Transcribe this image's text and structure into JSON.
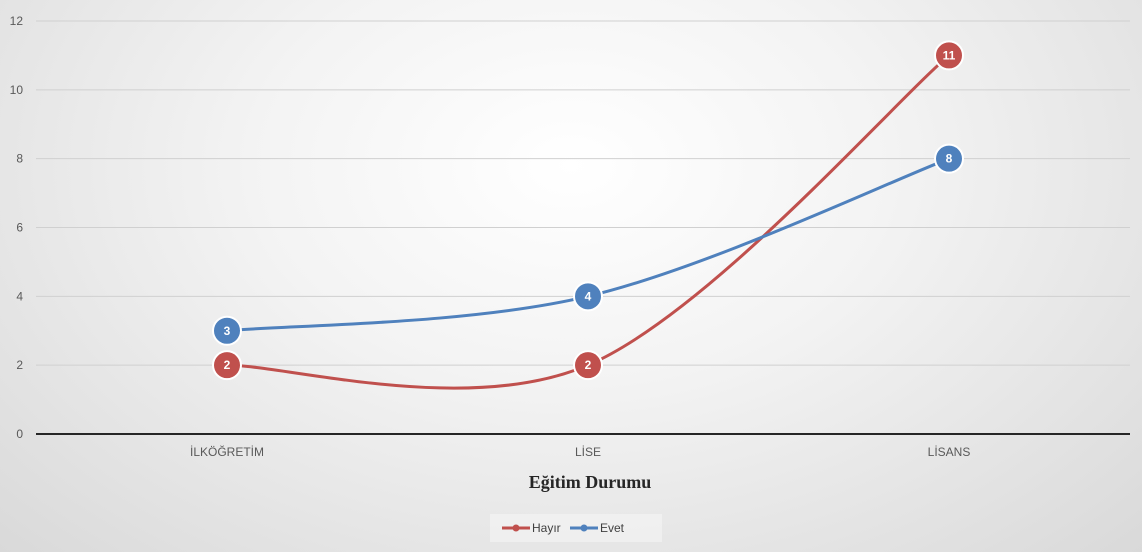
{
  "chart_data": {
    "type": "line",
    "title": "",
    "xlabel": "Eğitim Durumu",
    "ylabel": "",
    "categories": [
      "İLKÖĞRETİM",
      "LİSE",
      "LİSANS"
    ],
    "ylim": [
      0,
      12
    ],
    "yticks": [
      0,
      2,
      4,
      6,
      8,
      10,
      12
    ],
    "grid": true,
    "smooth": true,
    "legend_position": "bottom",
    "series": [
      {
        "name": "Hayır",
        "values": [
          2,
          2,
          11
        ],
        "color": "#c0504d"
      },
      {
        "name": "Evet",
        "values": [
          3,
          4,
          8
        ],
        "color": "#4f81bd"
      }
    ]
  }
}
